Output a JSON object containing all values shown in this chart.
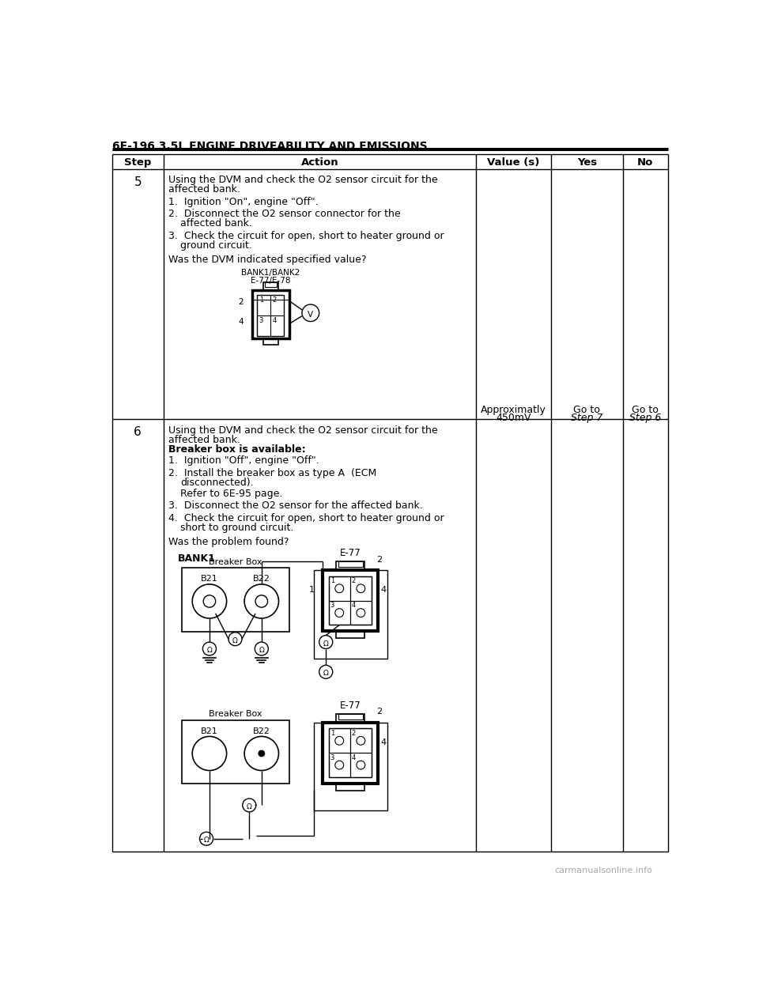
{
  "page_title": "6E-196 3.5L ENGINE DRIVEABILITY AND EMISSIONS",
  "header_cols": [
    "Step",
    "Action",
    "Value (s)",
    "Yes",
    "No"
  ],
  "bg_color": "#ffffff",
  "text_color": "#000000",
  "watermark": "carmanualsonline.info",
  "row5_value": "Approximatly\n450mV",
  "row5_yes": "Go to Step 7",
  "row5_no": "Go to Step 6"
}
